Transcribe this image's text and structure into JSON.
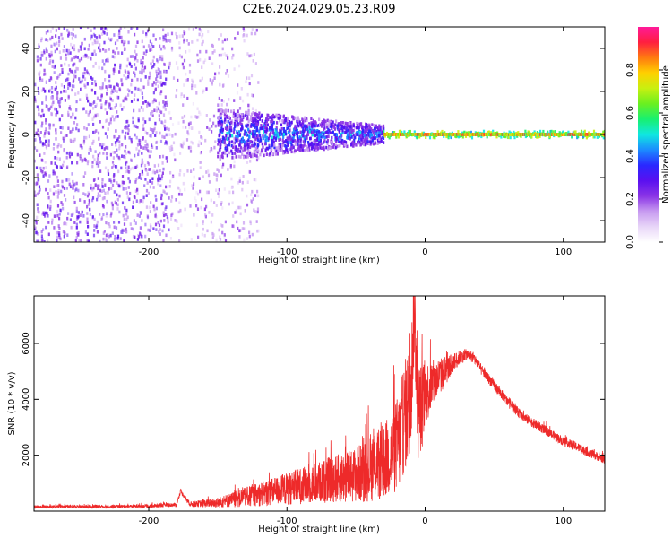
{
  "title": "C2E6.2024.029.05.23.R09",
  "colors": {
    "snr_line": "#ee2a2a",
    "colormap": [
      "#ffffff",
      "#e8d6f8",
      "#c79af0",
      "#8a34e6",
      "#5a10f0",
      "#2a28ff",
      "#1b8cff",
      "#10e8e0",
      "#18f070",
      "#6af020",
      "#c8f010",
      "#ffd000",
      "#ff7a10",
      "#ff1e40",
      "#ff1a9a"
    ]
  },
  "chart_data": [
    {
      "type": "heatmap",
      "title": "C2E6.2024.029.05.23.R09",
      "xlabel": "Height of straight line (km)",
      "ylabel": "Frequency (Hz)",
      "xlim": [
        -283,
        130
      ],
      "ylim": [
        -50,
        50
      ],
      "xticks": [
        -200,
        -100,
        0,
        100
      ],
      "yticks": [
        -40,
        -20,
        0,
        20,
        40
      ],
      "colorbar": {
        "label": "Normalized spectral amplitude",
        "range": [
          0,
          1
        ],
        "ticks": [
          "0.0",
          "0.2",
          "0.4",
          "0.6",
          "0.8"
        ],
        "tick_values": [
          0.0,
          0.2,
          0.4,
          0.6,
          0.8
        ]
      },
      "regions": [
        {
          "name": "diffuse noise",
          "x": [
            -283,
            -185
          ],
          "freq_spread_hz": 50,
          "amplitude": 0.15
        },
        {
          "name": "fading noise",
          "x": [
            -185,
            -120
          ],
          "freq_spread_hz": 50,
          "amplitude": 0.08
        },
        {
          "name": "emerging band",
          "x": [
            -150,
            -30
          ],
          "freq_halfwidth_hz": [
            12,
            4
          ],
          "amplitude": 0.35
        },
        {
          "name": "narrow tone",
          "x": [
            -30,
            130
          ],
          "center_hz": 0,
          "freq_halfwidth_hz": 1.5,
          "amplitude": 0.95
        }
      ]
    },
    {
      "type": "line",
      "xlabel": "Height of straight line (km)",
      "ylabel": "SNR (10 * v/v)",
      "xlim": [
        -283,
        130
      ],
      "ylim": [
        0,
        7700
      ],
      "xticks": [
        -200,
        -100,
        0,
        100
      ],
      "yticks": [
        2000,
        4000,
        6000
      ],
      "series": [
        {
          "x": [
            -283,
            -250,
            -220,
            -200,
            -180,
            -177,
            -170,
            -150,
            -130,
            -110,
            -90,
            -70,
            -50,
            -35,
            -25,
            -18,
            -15,
            -12,
            -10,
            -8,
            -5,
            -2,
            0,
            5,
            10,
            15,
            20,
            25,
            30,
            35,
            40,
            50,
            60,
            70,
            80,
            90,
            100,
            110,
            120,
            130
          ],
          "y": [
            150,
            160,
            170,
            180,
            230,
            700,
            250,
            300,
            500,
            700,
            900,
            1100,
            1300,
            1600,
            2000,
            2600,
            3400,
            3800,
            4400,
            7500,
            3600,
            3800,
            4200,
            4500,
            4800,
            5000,
            5300,
            5500,
            5600,
            5500,
            5100,
            4500,
            3900,
            3400,
            3100,
            2800,
            2500,
            2300,
            2050,
            1850
          ],
          "noise_amplitude": [
            60,
            60,
            60,
            60,
            70,
            70,
            90,
            180,
            350,
            500,
            650,
            800,
            1000,
            1250,
            1500,
            1800,
            2000,
            2100,
            2000,
            2000,
            1800,
            1500,
            1200,
            900,
            700,
            500,
            350,
            250,
            200,
            200,
            200,
            180,
            180,
            170,
            170,
            160,
            160,
            160,
            160,
            160
          ]
        }
      ]
    }
  ]
}
